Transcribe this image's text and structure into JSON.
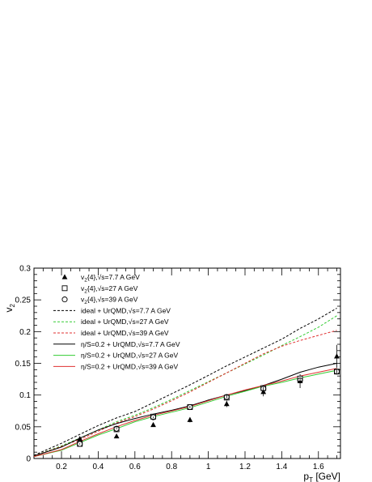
{
  "chart_data": {
    "type": "line",
    "xlabel": "p_T [GeV]",
    "ylabel": "v_2",
    "xlim": [
      0.05,
      1.72
    ],
    "ylim": [
      0,
      0.3
    ],
    "xticks": [
      0.2,
      0.4,
      0.6,
      0.8,
      1,
      1.2,
      1.4,
      1.6
    ],
    "xtick_labels": [
      "0.2",
      "0.4",
      "0.6",
      "0.8",
      "1",
      "1.2",
      "1.4",
      "1.6"
    ],
    "yticks": [
      0,
      0.05,
      0.1,
      0.15,
      0.2,
      0.25,
      0.3
    ],
    "ytick_labels": [
      "0",
      "0.05",
      "0.1",
      "0.15",
      "0.2",
      "0.25",
      "0.3"
    ],
    "grid": false,
    "legend_position": "top-left",
    "data_series": [
      {
        "name": "v2{4},√s=7.7 A GeV",
        "marker": "triangle",
        "x": [
          0.3,
          0.5,
          0.7,
          0.9,
          1.1,
          1.3,
          1.5,
          1.7
        ],
        "y": [
          0.031,
          0.035,
          0.053,
          0.061,
          0.086,
          0.105,
          0.122,
          0.161
        ],
        "err": [
          0.003,
          0.003,
          0.003,
          0.004,
          0.005,
          0.007,
          0.011,
          0.018
        ]
      },
      {
        "name": "v2{4},√s=27 A GeV",
        "marker": "square",
        "x": [
          0.3,
          0.5,
          0.7,
          0.9,
          1.1,
          1.3,
          1.5,
          1.7
        ],
        "y": [
          0.023,
          0.046,
          0.066,
          0.081,
          0.096,
          0.111,
          0.126,
          0.137
        ],
        "err": [
          0.001,
          0.001,
          0.001,
          0.002,
          0.002,
          0.003,
          0.004,
          0.004
        ]
      },
      {
        "name": "v2{4},√s=39 A GeV",
        "marker": "circle",
        "x": [
          0.3,
          0.5,
          0.7,
          0.9,
          1.1,
          1.3,
          1.5,
          1.7
        ],
        "y": [
          0.023,
          0.047,
          0.065,
          0.081,
          0.097,
          0.11,
          0.123,
          0.137
        ],
        "err": [
          0.001,
          0.001,
          0.001,
          0.002,
          0.002,
          0.003,
          0.004,
          0.004
        ]
      }
    ],
    "curves": [
      {
        "name": "ideal + UrQMD,√s=7.7 A GeV",
        "color": "#000000",
        "dash": true,
        "x": [
          0.05,
          0.2,
          0.3,
          0.4,
          0.5,
          0.6,
          0.7,
          0.8,
          0.9,
          1.0,
          1.1,
          1.2,
          1.3,
          1.4,
          1.5,
          1.6,
          1.7
        ],
        "y": [
          0.005,
          0.024,
          0.038,
          0.052,
          0.064,
          0.074,
          0.088,
          0.102,
          0.116,
          0.131,
          0.146,
          0.16,
          0.174,
          0.188,
          0.205,
          0.22,
          0.237
        ]
      },
      {
        "name": "ideal + UrQMD,√s=27 A GeV",
        "color": "#33cc33",
        "dash": true,
        "x": [
          0.05,
          0.2,
          0.3,
          0.4,
          0.5,
          0.6,
          0.7,
          0.8,
          0.9,
          1.0,
          1.1,
          1.2,
          1.3,
          1.4,
          1.5,
          1.6,
          1.7
        ],
        "y": [
          0.004,
          0.02,
          0.032,
          0.045,
          0.058,
          0.068,
          0.08,
          0.093,
          0.107,
          0.121,
          0.135,
          0.149,
          0.163,
          0.178,
          0.192,
          0.207,
          0.225
        ]
      },
      {
        "name": "ideal + UrQMD,√s=39 A GeV",
        "color": "#e03030",
        "dash": true,
        "x": [
          0.05,
          0.2,
          0.3,
          0.4,
          0.5,
          0.6,
          0.7,
          0.8,
          0.9,
          1.0,
          1.1,
          1.2,
          1.3,
          1.4,
          1.5,
          1.6,
          1.7
        ],
        "y": [
          0.004,
          0.019,
          0.03,
          0.043,
          0.056,
          0.066,
          0.078,
          0.091,
          0.105,
          0.12,
          0.135,
          0.15,
          0.165,
          0.177,
          0.186,
          0.194,
          0.202
        ]
      },
      {
        "name": "η/S=0.2 + UrQMD,√s=7.7 A GeV",
        "color": "#000000",
        "dash": false,
        "x": [
          0.05,
          0.2,
          0.3,
          0.4,
          0.5,
          0.6,
          0.7,
          0.8,
          0.9,
          1.0,
          1.1,
          1.2,
          1.3,
          1.4,
          1.5,
          1.6,
          1.7
        ],
        "y": [
          0.004,
          0.018,
          0.032,
          0.045,
          0.055,
          0.063,
          0.07,
          0.076,
          0.083,
          0.092,
          0.1,
          0.107,
          0.115,
          0.125,
          0.136,
          0.144,
          0.15
        ]
      },
      {
        "name": "η/S=0.2 + UrQMD,√s=27 A GeV",
        "color": "#33cc33",
        "dash": false,
        "x": [
          0.05,
          0.2,
          0.3,
          0.4,
          0.5,
          0.6,
          0.7,
          0.8,
          0.9,
          1.0,
          1.1,
          1.2,
          1.3,
          1.4,
          1.5,
          1.6,
          1.7
        ],
        "y": [
          0.003,
          0.013,
          0.025,
          0.037,
          0.047,
          0.058,
          0.066,
          0.073,
          0.08,
          0.089,
          0.098,
          0.106,
          0.114,
          0.12,
          0.127,
          0.133,
          0.139
        ]
      },
      {
        "name": "η/S=0.2 + UrQMD,√s=39 A GeV",
        "color": "#e03030",
        "dash": false,
        "x": [
          0.05,
          0.2,
          0.3,
          0.4,
          0.5,
          0.6,
          0.7,
          0.8,
          0.9,
          1.0,
          1.1,
          1.2,
          1.3,
          1.4,
          1.5,
          1.6,
          1.7
        ],
        "y": [
          0.003,
          0.014,
          0.027,
          0.039,
          0.05,
          0.06,
          0.068,
          0.075,
          0.082,
          0.091,
          0.1,
          0.108,
          0.115,
          0.122,
          0.13,
          0.136,
          0.142
        ]
      }
    ],
    "legend": [
      {
        "kind": "marker",
        "marker": "triangle",
        "prefix": "v",
        "sub": "2",
        "suffix": "{4},√s=7.7 A GeV"
      },
      {
        "kind": "marker",
        "marker": "square",
        "prefix": "v",
        "sub": "2",
        "suffix": "{4},√s=27 A GeV"
      },
      {
        "kind": "marker",
        "marker": "circle",
        "prefix": "v",
        "sub": "2",
        "suffix": "{4},√s=39 A GeV"
      },
      {
        "kind": "line",
        "color": "#000000",
        "dash": true,
        "prefix": "ideal + UrQMD,√s=7.7 A GeV",
        "sub": "",
        "suffix": ""
      },
      {
        "kind": "line",
        "color": "#33cc33",
        "dash": true,
        "prefix": "ideal + UrQMD,√s=27 A GeV",
        "sub": "",
        "suffix": ""
      },
      {
        "kind": "line",
        "color": "#e03030",
        "dash": true,
        "prefix": "ideal + UrQMD,√s=39 A GeV",
        "sub": "",
        "suffix": ""
      },
      {
        "kind": "line",
        "color": "#000000",
        "dash": false,
        "prefix": "η/S=0.2 + UrQMD,√s=7.7 A GeV",
        "sub": "",
        "suffix": ""
      },
      {
        "kind": "line",
        "color": "#33cc33",
        "dash": false,
        "prefix": "η/S=0.2 + UrQMD,√s=27 A GeV",
        "sub": "",
        "suffix": ""
      },
      {
        "kind": "line",
        "color": "#e03030",
        "dash": false,
        "prefix": "η/S=0.2 + UrQMD,√s=39 A GeV",
        "sub": "",
        "suffix": ""
      }
    ]
  }
}
